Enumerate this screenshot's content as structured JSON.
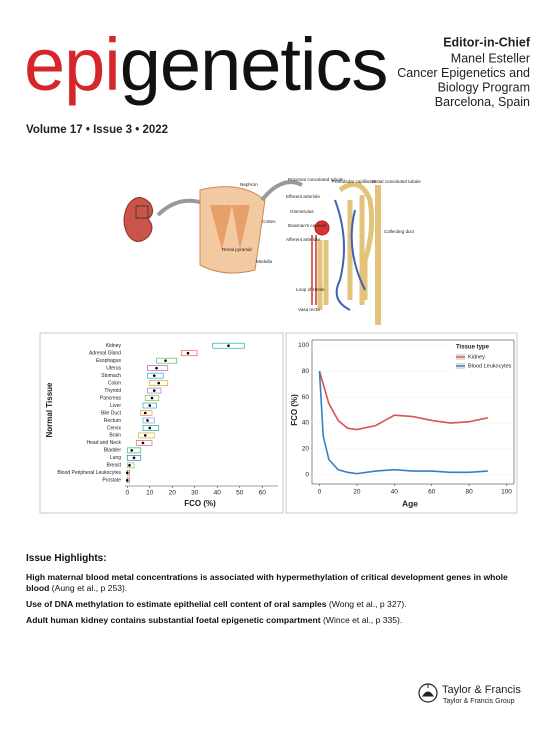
{
  "header": {
    "logo_prefix": "epi",
    "logo_suffix": "genetics",
    "issue": "Volume 17 • Issue 3 • 2022",
    "editor_title": "Editor-in-Chief",
    "editor_lines": [
      "Manel Esteller",
      "Cancer Epigenetics and",
      "Biology Program",
      "Barcelona, Spain"
    ]
  },
  "diagram": {
    "labels": [
      "Nephron",
      "Cortex",
      "Renal pyramid",
      "Medulla",
      "Proximal convoluted tubule",
      "Efferent arteriole",
      "Glomerulus",
      "Bowman's capsule",
      "Afferent arteriole",
      "Peritubular capillaries",
      "Distal convoluted tubule",
      "Collecting duct",
      "Loop of Henle",
      "Vasa recta"
    ]
  },
  "chart_data": [
    {
      "type": "box",
      "x_label": "FCO (%)",
      "y_label": "Normal Tissue",
      "categories": [
        "Kidney",
        "Adrenal Gland",
        "Esophagus",
        "Uterus",
        "Stomach",
        "Colon",
        "Thyroid",
        "Pancreas",
        "Liver",
        "Bile Duct",
        "Rectum",
        "Cervix",
        "Brain",
        "Head and Neck",
        "Bladder",
        "Lung",
        "Breast",
        "Blood Peripheral Leukocytes",
        "Prostate"
      ],
      "q1": [
        38,
        24,
        13,
        9,
        9,
        10,
        9,
        8,
        7,
        6,
        7,
        7,
        5,
        4,
        0,
        0,
        0,
        0,
        0
      ],
      "median": [
        45,
        27,
        17,
        13,
        12,
        14,
        12,
        11,
        10,
        8,
        9,
        10,
        8,
        7,
        2,
        3,
        1,
        0,
        0
      ],
      "q3": [
        52,
        31,
        22,
        18,
        16,
        18,
        15,
        14,
        13,
        11,
        12,
        14,
        12,
        11,
        6,
        6,
        3,
        1,
        1
      ],
      "colors": [
        "#19b5a5",
        "#f0554f",
        "#5bb86a",
        "#c45ab8",
        "#2f9fd8",
        "#e0a020",
        "#9d7ad8",
        "#7bc242",
        "#28b0c0",
        "#f08a3c",
        "#8e8ef0",
        "#22a888",
        "#c8b820",
        "#e06090",
        "#3ab070",
        "#4070d0",
        "#90c040",
        "#b07040",
        "#e06060"
      ],
      "xlim": [
        -1,
        67
      ],
      "xticks": [
        0,
        10,
        20,
        30,
        40,
        50,
        60
      ]
    },
    {
      "type": "line",
      "x_label": "Age",
      "y_label": "FCO (%)",
      "legend_title": "Tissue type",
      "legend": "top-right",
      "series": [
        {
          "name": "Kidney",
          "color": "#d9534f",
          "x": [
            0,
            5,
            10,
            15,
            20,
            30,
            40,
            50,
            60,
            70,
            80,
            90
          ],
          "values": [
            80,
            55,
            42,
            36,
            35,
            38,
            46,
            45,
            42,
            40,
            41,
            44
          ]
        },
        {
          "name": "Blood Leukocytes",
          "color": "#3a7fc1",
          "x": [
            0,
            2,
            5,
            10,
            15,
            20,
            30,
            40,
            50,
            60,
            70,
            80,
            90
          ],
          "values": [
            80,
            30,
            12,
            4,
            2,
            1,
            3,
            4,
            3,
            3,
            2,
            2,
            3
          ]
        }
      ],
      "xlim": [
        -4,
        104
      ],
      "xticks": [
        0,
        20,
        40,
        60,
        80,
        100
      ],
      "ylim": [
        -7,
        104
      ],
      "yticks": [
        0,
        20,
        40,
        60,
        80,
        100
      ]
    }
  ],
  "highlights": {
    "heading": "Issue Highlights:",
    "items": [
      {
        "text": "High maternal blood metal concentrations is associated with hypermethylation of critical development genes in whole blood",
        "citation": "(Aung et al., p 253)."
      },
      {
        "text": "Use of DNA methylation to estimate epithelial cell content of oral samples",
        "citation": "(Wong et al., p 327)."
      },
      {
        "text": "Adult human kidney contains substantial foetal epigenetic compartment",
        "citation": "(Wince et al., p 335)."
      }
    ]
  },
  "publisher": {
    "name": "Taylor & Francis",
    "group": "Taylor & Francis Group"
  }
}
